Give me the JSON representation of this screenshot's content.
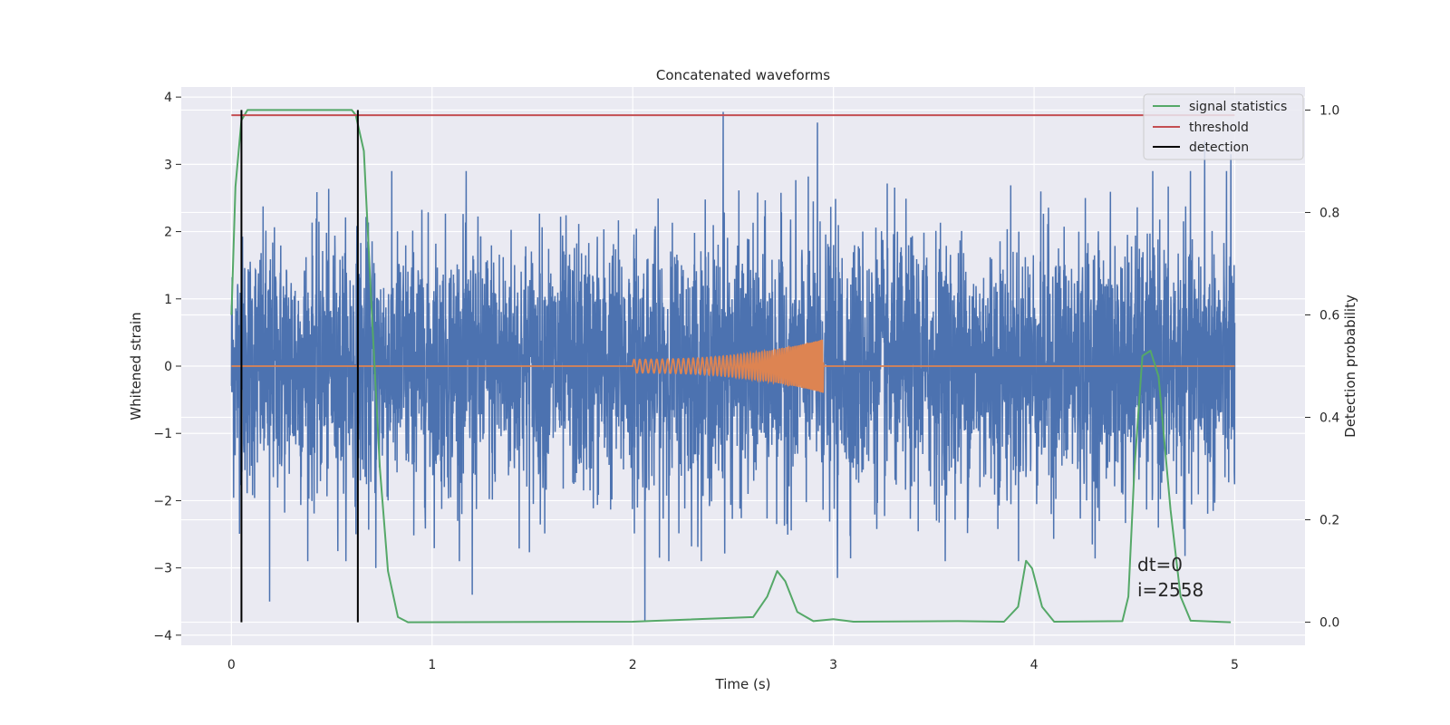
{
  "chart_data": {
    "type": "line",
    "title": "Concatenated waveforms",
    "xlabel": "Time (s)",
    "ylabel": "Whitened strain",
    "ylabel_right": "Detection probability",
    "xlim": [
      -0.25,
      5.35
    ],
    "ylim": [
      -4.15,
      4.15
    ],
    "ylim_right": [
      -0.045,
      1.045
    ],
    "x_ticks": [
      0,
      1,
      2,
      3,
      4,
      5
    ],
    "y_ticks": [
      -4,
      -3,
      -2,
      -1,
      0,
      1,
      2,
      3,
      4
    ],
    "y_ticks_right": [
      0.0,
      0.2,
      0.4,
      0.6,
      0.8,
      1.0
    ],
    "x_tick_labels": [
      "0",
      "1",
      "2",
      "3",
      "4",
      "5"
    ],
    "y_tick_labels": [
      "−4",
      "−3",
      "−2",
      "−1",
      "0",
      "1",
      "2",
      "3",
      "4"
    ],
    "y_tick_labels_right": [
      "0.0",
      "0.2",
      "0.4",
      "0.6",
      "0.8",
      "1.0"
    ],
    "grid": true,
    "legend_position": "top-right",
    "series": [
      {
        "name": "",
        "axis": "left",
        "color": "#4c72b0",
        "kind": "whitened noise",
        "x_range": [
          0,
          5
        ],
        "typical_amplitude": 1.8,
        "peaks": [
          [
            0.05,
            -2.65
          ],
          [
            0.19,
            -3.5
          ],
          [
            0.72,
            -3.0
          ],
          [
            1.2,
            -3.4
          ],
          [
            2.06,
            -3.8
          ],
          [
            2.45,
            3.78
          ],
          [
            2.92,
            3.62
          ],
          [
            3.02,
            -3.15
          ],
          [
            4.85,
            3.35
          ],
          [
            4.98,
            3.15
          ]
        ]
      },
      {
        "name": "",
        "axis": "left",
        "color": "#dd8452",
        "kind": "chirp",
        "x_range": [
          2.0,
          2.95
        ],
        "amplitude_start": 0.1,
        "amplitude_peak": 0.4,
        "flat_value": 0
      },
      {
        "name": "signal statistics",
        "axis": "right",
        "color": "#55a868",
        "points": [
          [
            0.0,
            0.6
          ],
          [
            0.02,
            0.85
          ],
          [
            0.05,
            0.98
          ],
          [
            0.08,
            1.0
          ],
          [
            0.6,
            1.0
          ],
          [
            0.62,
            0.99
          ],
          [
            0.66,
            0.92
          ],
          [
            0.7,
            0.6
          ],
          [
            0.74,
            0.3
          ],
          [
            0.78,
            0.1
          ],
          [
            0.83,
            0.01
          ],
          [
            0.88,
            0.0
          ],
          [
            2.0,
            0.001
          ],
          [
            2.6,
            0.01
          ],
          [
            2.67,
            0.05
          ],
          [
            2.72,
            0.1
          ],
          [
            2.76,
            0.08
          ],
          [
            2.82,
            0.02
          ],
          [
            2.9,
            0.002
          ],
          [
            3.0,
            0.006
          ],
          [
            3.1,
            0.001
          ],
          [
            3.62,
            0.002
          ],
          [
            3.85,
            0.001
          ],
          [
            3.92,
            0.03
          ],
          [
            3.96,
            0.12
          ],
          [
            3.99,
            0.105
          ],
          [
            4.04,
            0.03
          ],
          [
            4.1,
            0.001
          ],
          [
            4.44,
            0.002
          ],
          [
            4.47,
            0.05
          ],
          [
            4.5,
            0.3
          ],
          [
            4.54,
            0.52
          ],
          [
            4.58,
            0.53
          ],
          [
            4.62,
            0.48
          ],
          [
            4.68,
            0.22
          ],
          [
            4.73,
            0.05
          ],
          [
            4.78,
            0.003
          ],
          [
            4.98,
            0.0
          ]
        ]
      },
      {
        "name": "threshold",
        "axis": "right",
        "color": "#c44e52",
        "value": 0.99,
        "x_range": [
          0,
          5
        ]
      },
      {
        "name": "detection",
        "axis": "right",
        "color": "#000000",
        "vertical_lines": [
          0.05,
          0.63
        ],
        "y_range": [
          0.0,
          1.0
        ]
      }
    ],
    "annotation": {
      "lines": [
        "dt=0",
        "i=2558"
      ],
      "x": 4.5,
      "y": -3.0
    }
  }
}
